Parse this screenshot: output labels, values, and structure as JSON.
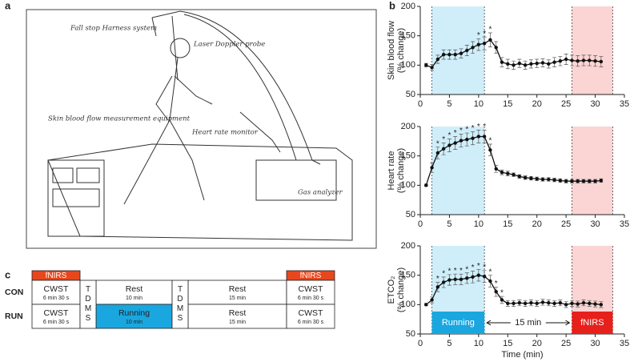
{
  "panel_labels": [
    "a",
    "b",
    "c"
  ],
  "illustration": {
    "labels": [
      "Fall stop Harness system",
      "Laser Doppler probe",
      "Skin blood flow measurement equipment",
      "Heart rate monitor",
      "Gas analyzer"
    ]
  },
  "protocol": {
    "top_labels": [
      "fNIRS",
      "fNIRS"
    ],
    "tdms": [
      "TDMS",
      "TDMS"
    ],
    "rows": [
      {
        "name": "CON",
        "cells": [
          [
            "CWST",
            "6 min 30 s"
          ],
          [
            "Rest",
            "10 min"
          ],
          [
            "Rest",
            "15 min"
          ],
          [
            "CWST",
            "6 min 30 s"
          ]
        ]
      },
      {
        "name": "RUN",
        "cells": [
          [
            "CWST",
            "6 min 30 s"
          ],
          [
            "Running",
            "10 min"
          ],
          [
            "Rest",
            "15 min"
          ],
          [
            "CWST",
            "6 min 30 s"
          ]
        ]
      }
    ]
  },
  "chart_data": [
    {
      "type": "line",
      "ylabel": [
        "Skin blood flow",
        "(% change)"
      ],
      "x": [
        1,
        2,
        3,
        4,
        5,
        6,
        7,
        8,
        9,
        10,
        11,
        12,
        13,
        14,
        15,
        16,
        17,
        18,
        19,
        20,
        21,
        22,
        23,
        24,
        25,
        26,
        27,
        28,
        29,
        30,
        31
      ],
      "series": [
        {
          "color": "#111111",
          "values": [
            100,
            96,
            110,
            118,
            118,
            118,
            120,
            125,
            130,
            135,
            137,
            143,
            130,
            105,
            102,
            100,
            103,
            100,
            102,
            103,
            104,
            102,
            105,
            107,
            110,
            108,
            107,
            108,
            108,
            107,
            106
          ],
          "errors": [
            3,
            5,
            7,
            8,
            8,
            8,
            8,
            9,
            10,
            10,
            11,
            12,
            10,
            8,
            8,
            7,
            7,
            7,
            7,
            7,
            7,
            7,
            8,
            8,
            9,
            9,
            9,
            9,
            9,
            9,
            9
          ]
        }
      ],
      "annotation_label": "*",
      "significant_x": [
        10,
        11,
        12
      ],
      "shaded_regions": [
        {
          "x": [
            2,
            11
          ],
          "color": "#cfeefa"
        },
        {
          "x": [
            26,
            33
          ],
          "color": "#fbd4d4"
        }
      ],
      "xlim": [
        0,
        35
      ],
      "xticks": [
        0,
        5,
        10,
        15,
        20,
        25,
        30,
        35
      ],
      "ylim": [
        50,
        200
      ],
      "yticks": [
        50,
        100,
        150,
        200
      ]
    },
    {
      "type": "line",
      "ylabel": [
        "Heart rate",
        "(% change)"
      ],
      "x": [
        1,
        2,
        3,
        4,
        5,
        6,
        7,
        8,
        9,
        10,
        11,
        12,
        13,
        14,
        15,
        16,
        17,
        18,
        19,
        20,
        21,
        22,
        23,
        24,
        25,
        26,
        27,
        28,
        29,
        30,
        31
      ],
      "series": [
        {
          "color": "#111111",
          "values": [
            100,
            130,
            155,
            162,
            168,
            172,
            176,
            178,
            180,
            183,
            183,
            160,
            128,
            122,
            120,
            118,
            115,
            113,
            112,
            111,
            110,
            110,
            109,
            108,
            107,
            107,
            107,
            107,
            107,
            107,
            108
          ],
          "errors": [
            2,
            8,
            10,
            10,
            11,
            11,
            11,
            11,
            11,
            11,
            11,
            10,
            6,
            4,
            4,
            3,
            3,
            3,
            3,
            3,
            3,
            3,
            3,
            3,
            3,
            3,
            3,
            3,
            3,
            3,
            3
          ]
        }
      ],
      "annotation_label": "*",
      "significant_x": [
        3,
        4,
        5,
        6,
        7,
        8,
        9,
        10,
        11,
        12
      ],
      "shaded_regions": [
        {
          "x": [
            2,
            11
          ],
          "color": "#cfeefa"
        },
        {
          "x": [
            26,
            33
          ],
          "color": "#fbd4d4"
        }
      ],
      "xlim": [
        0,
        35
      ],
      "xticks": [
        0,
        5,
        10,
        15,
        20,
        25,
        30,
        35
      ],
      "ylim": [
        50,
        200
      ],
      "yticks": [
        50,
        100,
        150,
        200
      ]
    },
    {
      "type": "line",
      "ylabel": [
        "ETCO₂",
        "(% change)"
      ],
      "xlabel": "Time (min)",
      "x": [
        1,
        2,
        3,
        4,
        5,
        6,
        7,
        8,
        9,
        10,
        11,
        12,
        13,
        14,
        15,
        16,
        17,
        18,
        19,
        20,
        21,
        22,
        23,
        24,
        25,
        26,
        27,
        28,
        29,
        30,
        31
      ],
      "series": [
        {
          "color": "#111111",
          "values": [
            100,
            108,
            130,
            138,
            142,
            143,
            143,
            145,
            147,
            150,
            148,
            140,
            122,
            108,
            102,
            102,
            103,
            102,
            103,
            102,
            104,
            103,
            102,
            103,
            100,
            102,
            101,
            103,
            102,
            101,
            100
          ],
          "errors": [
            2,
            5,
            8,
            9,
            9,
            9,
            9,
            9,
            10,
            10,
            10,
            10,
            8,
            6,
            5,
            5,
            5,
            5,
            5,
            5,
            5,
            5,
            5,
            5,
            5,
            5,
            5,
            5,
            5,
            5,
            5
          ]
        }
      ],
      "annotation_label": "*",
      "significant_x": [
        3,
        4,
        5,
        6,
        7,
        8,
        9,
        10,
        11,
        12,
        13,
        14
      ],
      "shaded_regions": [
        {
          "x": [
            2,
            11
          ],
          "color": "#cfeefa"
        },
        {
          "x": [
            26,
            33
          ],
          "color": "#fbd4d4"
        }
      ],
      "boxes": [
        {
          "label": "Running",
          "x": [
            2,
            11
          ],
          "color": "#1aa7e0"
        },
        {
          "label": "fNIRS",
          "x": [
            26,
            33
          ],
          "color": "#e8201b"
        }
      ],
      "interval_label": "15 min",
      "xlim": [
        0,
        35
      ],
      "xticks": [
        0,
        5,
        10,
        15,
        20,
        25,
        30,
        35
      ],
      "ylim": [
        50,
        200
      ],
      "yticks": [
        50,
        100,
        150,
        200
      ]
    }
  ]
}
